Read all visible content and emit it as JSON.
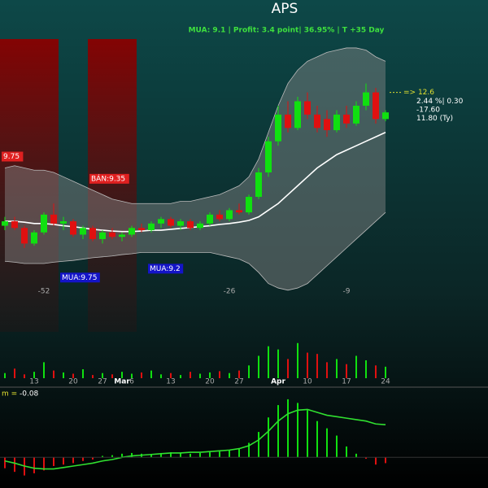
{
  "chart_data": {
    "type": "candlestick",
    "title": "APS",
    "subtitle": "MUA:  9.1 | Profit: 3.4 point| 36.95% | T +35 Day",
    "categories": [
      null,
      null,
      null,
      "13",
      null,
      null,
      null,
      "20",
      null,
      null,
      "27",
      null,
      "Mar",
      "6",
      null,
      null,
      null,
      "13",
      null,
      null,
      null,
      "20",
      null,
      null,
      "27",
      null,
      null,
      null,
      "Apr",
      null,
      null,
      "10",
      null,
      null,
      null,
      "17",
      null,
      null,
      null,
      "24"
    ],
    "open": [
      9.6,
      9.7,
      9.55,
      9.2,
      9.45,
      9.85,
      9.65,
      9.7,
      9.4,
      9.55,
      9.3,
      9.45,
      9.35,
      9.4,
      9.55,
      9.5,
      9.65,
      9.75,
      9.6,
      9.7,
      9.55,
      9.65,
      9.85,
      9.75,
      9.95,
      9.9,
      10.25,
      10.8,
      11.5,
      12.1,
      11.8,
      12.4,
      12.1,
      12.0,
      11.75,
      12.1,
      11.9,
      12.3,
      12.6,
      12.0
    ],
    "high": [
      9.8,
      9.8,
      9.6,
      9.5,
      9.9,
      10.1,
      9.8,
      9.75,
      9.6,
      9.6,
      9.5,
      9.55,
      9.45,
      9.6,
      9.65,
      9.7,
      9.8,
      9.8,
      9.75,
      9.75,
      9.7,
      9.9,
      9.95,
      10.0,
      10.1,
      10.3,
      10.9,
      11.6,
      12.3,
      12.4,
      12.5,
      12.6,
      12.3,
      12.2,
      12.2,
      12.3,
      12.4,
      12.8,
      12.7,
      12.2
    ],
    "low": [
      9.5,
      9.5,
      9.1,
      9.15,
      9.4,
      9.6,
      9.5,
      9.35,
      9.3,
      9.25,
      9.2,
      9.3,
      9.25,
      9.35,
      9.45,
      9.45,
      9.55,
      9.55,
      9.5,
      9.5,
      9.5,
      9.6,
      9.7,
      9.7,
      9.85,
      9.85,
      10.2,
      10.7,
      11.4,
      11.7,
      11.75,
      12.0,
      11.7,
      11.6,
      11.7,
      11.8,
      11.85,
      12.2,
      11.9,
      11.95
    ],
    "close": [
      9.7,
      9.55,
      9.2,
      9.45,
      9.85,
      9.65,
      9.7,
      9.4,
      9.55,
      9.3,
      9.45,
      9.35,
      9.4,
      9.55,
      9.5,
      9.65,
      9.75,
      9.6,
      9.7,
      9.55,
      9.65,
      9.85,
      9.75,
      9.95,
      9.9,
      10.25,
      10.8,
      11.5,
      12.1,
      11.8,
      12.4,
      12.1,
      11.8,
      11.75,
      12.1,
      11.9,
      12.3,
      12.6,
      12.0,
      12.15
    ],
    "up_color": "#10e010",
    "down_color": "#e01010",
    "ylim": [
      8.0,
      13.8
    ],
    "ma": {
      "color": "#ffffff",
      "values": [
        9.7,
        9.7,
        9.68,
        9.65,
        9.65,
        9.63,
        9.6,
        9.58,
        9.55,
        9.52,
        9.5,
        9.48,
        9.47,
        9.47,
        9.48,
        9.5,
        9.5,
        9.52,
        9.54,
        9.56,
        9.58,
        9.6,
        9.63,
        9.65,
        9.68,
        9.72,
        9.8,
        9.95,
        10.1,
        10.3,
        10.5,
        10.7,
        10.9,
        11.05,
        11.2,
        11.3,
        11.4,
        11.5,
        11.6,
        11.7
      ]
    },
    "bands": {
      "color": "#8a8a8a",
      "upper": [
        10.9,
        10.95,
        10.9,
        10.85,
        10.85,
        10.8,
        10.7,
        10.6,
        10.5,
        10.4,
        10.3,
        10.2,
        10.15,
        10.1,
        10.1,
        10.1,
        10.1,
        10.1,
        10.15,
        10.15,
        10.2,
        10.25,
        10.3,
        10.4,
        10.5,
        10.7,
        11.1,
        11.7,
        12.3,
        12.8,
        13.1,
        13.3,
        13.4,
        13.5,
        13.55,
        13.6,
        13.6,
        13.55,
        13.4,
        13.3
      ],
      "lower": [
        8.8,
        8.78,
        8.75,
        8.75,
        8.75,
        8.78,
        8.8,
        8.82,
        8.85,
        8.88,
        8.9,
        8.92,
        8.95,
        8.97,
        9.0,
        9.0,
        9.0,
        9.0,
        9.0,
        9.0,
        9.0,
        9.0,
        8.95,
        8.9,
        8.85,
        8.75,
        8.55,
        8.3,
        8.2,
        8.15,
        8.2,
        8.3,
        8.5,
        8.7,
        8.9,
        9.1,
        9.3,
        9.5,
        9.7,
        9.9
      ]
    },
    "shaded_periods": [
      [
        0,
        5
      ],
      [
        9,
        13
      ]
    ],
    "signals": [
      {
        "label": "9.75",
        "value": 9.75,
        "index": 0,
        "color": "#e02020",
        "position": "above"
      },
      {
        "label": "BÁN:9.35",
        "value": 9.35,
        "index": 9,
        "color": "#e02020",
        "position": "above"
      },
      {
        "label": "MUA:9.75",
        "value": 9.75,
        "index": 6,
        "color": "#1414c8",
        "position": "below"
      },
      {
        "label": "MUA:9.2",
        "value": 9.2,
        "index": 15,
        "color": "#1414c8",
        "position": "below"
      }
    ],
    "cycle_labels": [
      {
        "index": 4,
        "value": -52
      },
      {
        "index": 23,
        "value": -26
      },
      {
        "index": 35,
        "value": -9
      }
    ],
    "info": {
      "target": 12.6,
      "target_label": "=> 12.6",
      "lines": [
        "2.44 %| 0.30",
        "-17.60",
        "11.80 (Ty)"
      ]
    },
    "volume": {
      "ylim": [
        0,
        70
      ],
      "values": [
        8,
        15,
        6,
        10,
        25,
        12,
        9,
        7,
        14,
        5,
        8,
        6,
        10,
        7,
        9,
        12,
        6,
        8,
        5,
        10,
        7,
        9,
        11,
        8,
        12,
        20,
        35,
        50,
        45,
        30,
        55,
        40,
        38,
        25,
        30,
        22,
        35,
        28,
        20,
        18
      ]
    },
    "oscillator": {
      "legend": "m =",
      "ylim": [
        -0.4,
        0.9
      ],
      "line_color": "#30e030",
      "histogram": [
        -0.15,
        -0.2,
        -0.25,
        -0.22,
        -0.18,
        -0.12,
        -0.1,
        -0.08,
        -0.05,
        -0.03,
        0.02,
        0.03,
        0.05,
        0.06,
        0.05,
        0.04,
        0.06,
        0.07,
        0.06,
        0.05,
        0.06,
        0.07,
        0.08,
        0.1,
        0.12,
        0.2,
        0.35,
        0.55,
        0.72,
        0.8,
        0.75,
        0.65,
        0.5,
        0.4,
        0.3,
        0.15,
        0.05,
        -0.02,
        -0.1,
        -0.08
      ],
      "line": [
        -0.05,
        -0.08,
        -0.12,
        -0.15,
        -0.16,
        -0.16,
        -0.14,
        -0.12,
        -0.1,
        -0.08,
        -0.05,
        -0.03,
        0,
        0.02,
        0.03,
        0.04,
        0.05,
        0.06,
        0.06,
        0.07,
        0.07,
        0.08,
        0.09,
        0.1,
        0.12,
        0.16,
        0.24,
        0.36,
        0.5,
        0.6,
        0.65,
        0.66,
        0.62,
        0.58,
        0.56,
        0.54,
        0.52,
        0.5,
        0.46,
        0.45
      ]
    }
  }
}
